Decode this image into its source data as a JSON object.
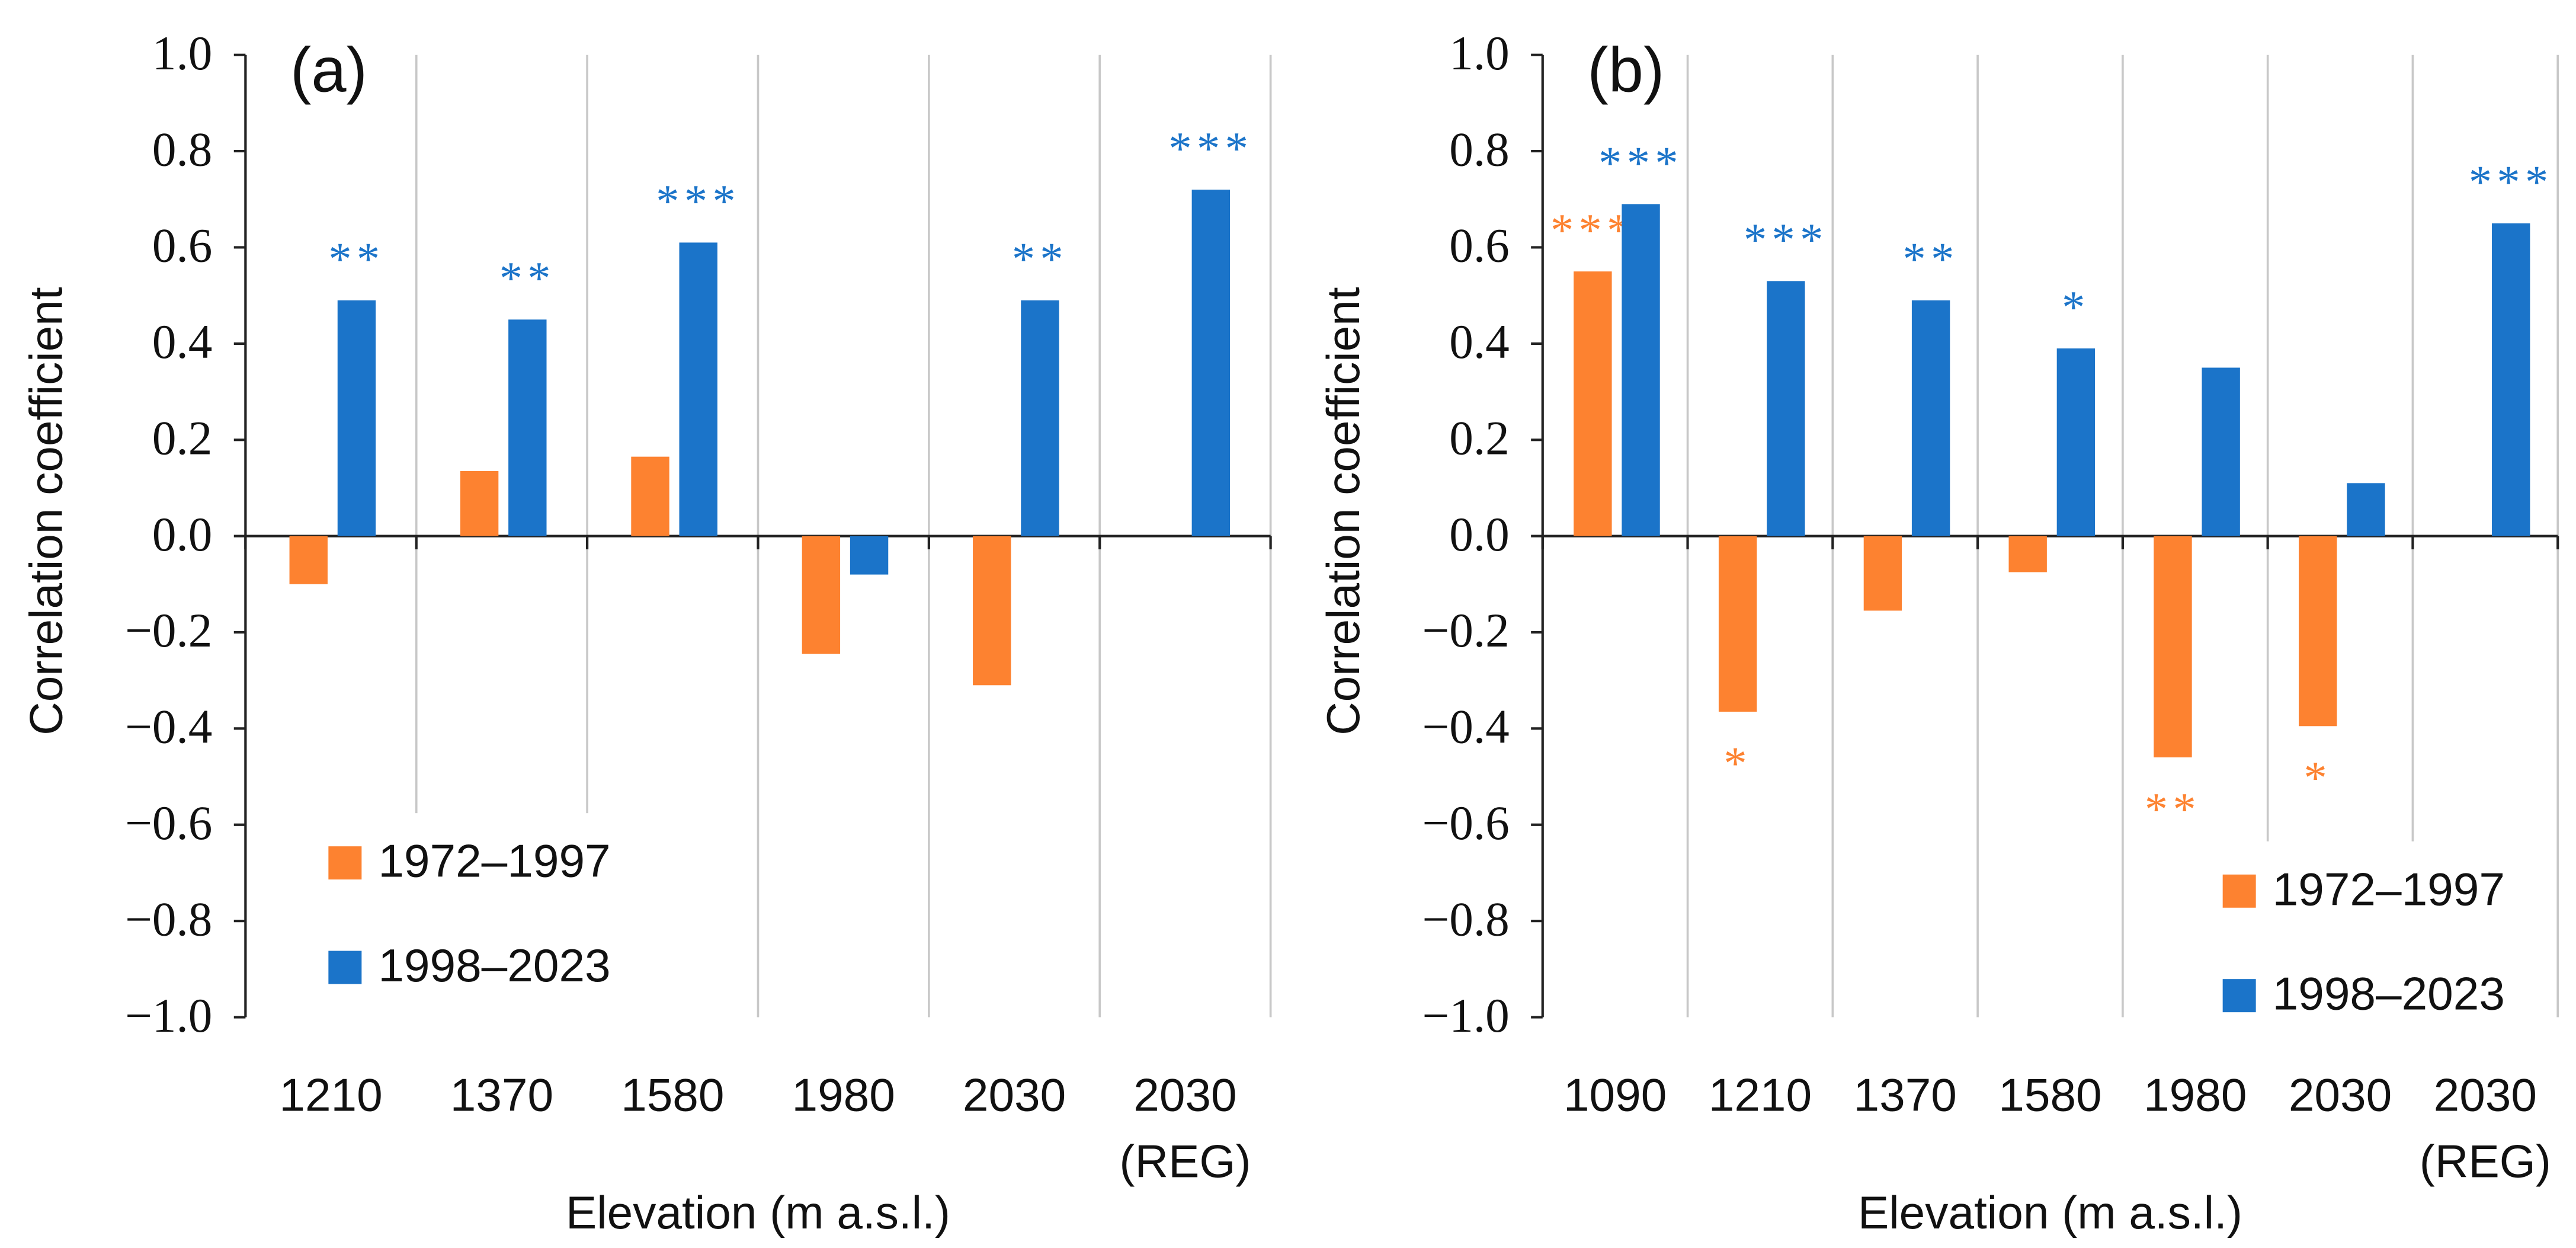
{
  "chart_data": [
    {
      "type": "bar",
      "panel_label": "(a)",
      "x_label": "Elevation (m a.s.l.)",
      "y_label": "Correlation coefficient",
      "categories": [
        [
          "1210"
        ],
        [
          "1370"
        ],
        [
          "1580"
        ],
        [
          "1980"
        ],
        [
          "2030"
        ],
        [
          "2030",
          "(REG)"
        ]
      ],
      "series": [
        {
          "name": "1972–1997",
          "color": "#fd8230",
          "values": [
            -0.1,
            0.135,
            0.165,
            -0.245,
            -0.31,
            null
          ],
          "significance": [
            null,
            null,
            null,
            null,
            null,
            null
          ]
        },
        {
          "name": "1998–2023",
          "color": "#1b74c9",
          "values": [
            0.49,
            0.45,
            0.61,
            -0.08,
            0.49,
            0.72
          ],
          "significance": [
            "**",
            "**",
            "***",
            null,
            "**",
            "***"
          ]
        }
      ],
      "ylim": [
        -1,
        1
      ],
      "yticks": [
        {
          "value": 1,
          "label": "1.0"
        },
        {
          "value": 0.8,
          "label": "0.8"
        },
        {
          "value": 0.6,
          "label": "0.6"
        },
        {
          "value": 0.4,
          "label": "0.4"
        },
        {
          "value": 0.2,
          "label": "0.2"
        },
        {
          "value": 0,
          "label": "0.0"
        },
        {
          "value": -0.2,
          "label": "−0.2"
        },
        {
          "value": -0.4,
          "label": "−0.4"
        },
        {
          "value": -0.6,
          "label": "−0.6"
        },
        {
          "value": -0.8,
          "label": "−0.8"
        },
        {
          "value": -1,
          "label": "−1.0"
        }
      ],
      "grid": true,
      "legend": "lower left"
    },
    {
      "type": "bar",
      "panel_label": "(b)",
      "x_label": "Elevation (m a.s.l.)",
      "y_label": "Correlation coefficient",
      "categories": [
        [
          "1090"
        ],
        [
          "1210"
        ],
        [
          "1370"
        ],
        [
          "1580"
        ],
        [
          "1980"
        ],
        [
          "2030"
        ],
        [
          "2030",
          "(REG)"
        ]
      ],
      "series": [
        {
          "name": "1972–1997",
          "color": "#fd8230",
          "values": [
            0.55,
            -0.365,
            -0.155,
            -0.075,
            -0.46,
            -0.395,
            null
          ],
          "significance": [
            "***",
            "*",
            null,
            null,
            "**",
            "*",
            null
          ]
        },
        {
          "name": "1998–2023",
          "color": "#1b74c9",
          "values": [
            0.69,
            0.53,
            0.49,
            0.39,
            0.35,
            0.11,
            0.65
          ],
          "significance": [
            "***",
            "***",
            "**",
            "*",
            null,
            null,
            "***"
          ]
        }
      ],
      "ylim": [
        -1,
        1
      ],
      "yticks": [
        {
          "value": 1,
          "label": "1.0"
        },
        {
          "value": 0.8,
          "label": "0.8"
        },
        {
          "value": 0.6,
          "label": "0.6"
        },
        {
          "value": 0.4,
          "label": "0.4"
        },
        {
          "value": 0.2,
          "label": "0.2"
        },
        {
          "value": 0,
          "label": "0.0"
        },
        {
          "value": -0.2,
          "label": "−0.2"
        },
        {
          "value": -0.4,
          "label": "−0.4"
        },
        {
          "value": -0.6,
          "label": "−0.6"
        },
        {
          "value": -0.8,
          "label": "−0.8"
        },
        {
          "value": -1,
          "label": "−1.0"
        }
      ],
      "grid": true,
      "legend": "lower right"
    }
  ]
}
